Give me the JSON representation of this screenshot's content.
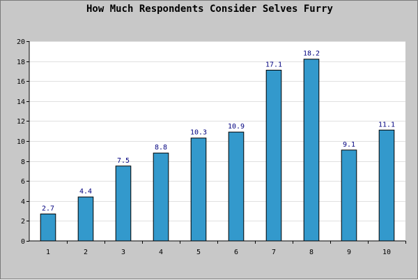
{
  "chart_data": {
    "type": "bar",
    "title": "How Much Respondents Consider Selves Furry",
    "xlabel": "",
    "ylabel": "",
    "categories": [
      "1",
      "2",
      "3",
      "4",
      "5",
      "6",
      "7",
      "8",
      "9",
      "10"
    ],
    "values": [
      2.7,
      4.4,
      7.5,
      8.8,
      10.3,
      10.9,
      17.1,
      18.2,
      9.1,
      11.1
    ],
    "value_labels": [
      "2.7",
      "4.4",
      "7.5",
      "8.8",
      "10.3",
      "10.9",
      "17.1",
      "18.2",
      "9.1",
      "11.1"
    ],
    "ylim": [
      0,
      20
    ],
    "yticks": [
      0,
      2,
      4,
      6,
      8,
      10,
      12,
      14,
      16,
      18,
      20
    ],
    "grid": true,
    "legend": "none",
    "colors": {
      "bar": "#3399cc",
      "bar_border": "#000000",
      "background": "#c8c8c8",
      "plot_background": "#ffffff",
      "grid": "#e0e0e0",
      "data_label": "#00007f"
    }
  }
}
